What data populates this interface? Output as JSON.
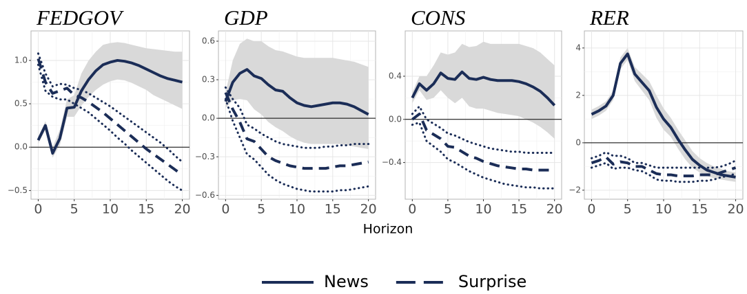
{
  "xlabel": "Horizon",
  "legend": [
    {
      "name": "News",
      "style": "solid",
      "color": "#1b2d57"
    },
    {
      "name": "Surprise",
      "style": "dashed",
      "color": "#1b2d57"
    }
  ],
  "chart_data": [
    {
      "type": "line",
      "title": "FEDGOV",
      "x": [
        0,
        1,
        2,
        3,
        4,
        5,
        6,
        7,
        8,
        9,
        10,
        11,
        12,
        13,
        14,
        15,
        16,
        17,
        18,
        19,
        20
      ],
      "xlim": [
        -1,
        21
      ],
      "xticks": [
        0,
        5,
        10,
        15,
        20
      ],
      "ylim": [
        -0.6,
        1.34
      ],
      "yticks": [
        {
          "value": -0.5,
          "label": "−0.5"
        },
        {
          "value": 0,
          "label": "0.0"
        },
        0.5,
        {
          "value": 1,
          "label": "1.0"
        }
      ],
      "hline": 0,
      "grid": true,
      "series": [
        {
          "values": [
            0.08,
            0.25,
            -0.07,
            0.1,
            0.45,
            0.46,
            0.65,
            0.78,
            0.88,
            0.95,
            0.98,
            1.0,
            0.99,
            0.97,
            0.94,
            0.9,
            0.86,
            0.82,
            0.79,
            0.77,
            0.75
          ],
          "upper": [
            0.12,
            0.3,
            0.0,
            0.2,
            0.55,
            0.6,
            0.85,
            1.0,
            1.1,
            1.18,
            1.2,
            1.21,
            1.2,
            1.18,
            1.16,
            1.14,
            1.13,
            1.12,
            1.11,
            1.1,
            1.1
          ],
          "lower": [
            0.04,
            0.2,
            -0.12,
            0.02,
            0.35,
            0.35,
            0.48,
            0.58,
            0.66,
            0.72,
            0.76,
            0.78,
            0.77,
            0.74,
            0.7,
            0.66,
            0.6,
            0.56,
            0.52,
            0.48,
            0.44
          ]
        },
        {
          "values": [
            1.02,
            0.75,
            0.62,
            0.65,
            0.68,
            0.6,
            0.57,
            0.52,
            0.46,
            0.4,
            0.33,
            0.26,
            0.19,
            0.12,
            0.05,
            -0.02,
            -0.08,
            -0.14,
            -0.2,
            -0.26,
            -0.32
          ],
          "upper": [
            1.08,
            0.85,
            0.7,
            0.73,
            0.72,
            0.68,
            0.66,
            0.62,
            0.57,
            0.52,
            0.47,
            0.41,
            0.35,
            0.29,
            0.23,
            0.17,
            0.11,
            0.05,
            -0.02,
            -0.1,
            -0.17
          ],
          "lower": [
            0.95,
            0.65,
            0.58,
            0.55,
            0.55,
            0.5,
            0.45,
            0.4,
            0.33,
            0.26,
            0.19,
            0.11,
            0.04,
            -0.04,
            -0.11,
            -0.18,
            -0.25,
            -0.32,
            -0.39,
            -0.45,
            -0.5
          ]
        }
      ]
    },
    {
      "type": "line",
      "title": "GDP",
      "x": [
        0,
        1,
        2,
        3,
        4,
        5,
        6,
        7,
        8,
        9,
        10,
        11,
        12,
        13,
        14,
        15,
        16,
        17,
        18,
        19,
        20
      ],
      "xlim": [
        -1,
        21
      ],
      "xticks": [
        0,
        5,
        10,
        15,
        20
      ],
      "ylim": [
        -0.63,
        0.68
      ],
      "yticks": [
        {
          "value": -0.6,
          "label": "−0.6"
        },
        {
          "value": -0.3,
          "label": "−0.3"
        },
        {
          "value": 0,
          "label": "0.0"
        },
        0.3,
        0.6
      ],
      "hline": 0,
      "grid": true,
      "series": [
        {
          "values": [
            0.13,
            0.28,
            0.35,
            0.38,
            0.33,
            0.31,
            0.26,
            0.22,
            0.21,
            0.16,
            0.12,
            0.1,
            0.09,
            0.1,
            0.11,
            0.12,
            0.12,
            0.11,
            0.09,
            0.06,
            0.03
          ],
          "upper": [
            0.2,
            0.45,
            0.58,
            0.62,
            0.6,
            0.6,
            0.56,
            0.53,
            0.52,
            0.5,
            0.48,
            0.47,
            0.47,
            0.47,
            0.47,
            0.47,
            0.46,
            0.45,
            0.44,
            0.42,
            0.4
          ],
          "lower": [
            0.08,
            0.14,
            0.15,
            0.14,
            0.07,
            0.03,
            -0.03,
            -0.07,
            -0.1,
            -0.14,
            -0.17,
            -0.19,
            -0.2,
            -0.2,
            -0.2,
            -0.2,
            -0.2,
            -0.21,
            -0.22,
            -0.23,
            -0.24
          ]
        },
        {
          "values": [
            0.2,
            0.07,
            -0.03,
            -0.16,
            -0.18,
            -0.24,
            -0.3,
            -0.33,
            -0.35,
            -0.37,
            -0.38,
            -0.39,
            -0.39,
            -0.39,
            -0.39,
            -0.38,
            -0.37,
            -0.37,
            -0.36,
            -0.35,
            -0.34
          ],
          "upper": [
            0.24,
            0.15,
            0.08,
            -0.05,
            -0.08,
            -0.12,
            -0.15,
            -0.18,
            -0.2,
            -0.21,
            -0.22,
            -0.23,
            -0.23,
            -0.23,
            -0.22,
            -0.22,
            -0.21,
            -0.21,
            -0.2,
            -0.2,
            -0.2
          ],
          "lower": [
            0.15,
            -0.02,
            -0.15,
            -0.28,
            -0.32,
            -0.38,
            -0.44,
            -0.48,
            -0.51,
            -0.53,
            -0.55,
            -0.56,
            -0.57,
            -0.57,
            -0.57,
            -0.57,
            -0.56,
            -0.56,
            -0.55,
            -0.54,
            -0.53
          ]
        }
      ]
    },
    {
      "type": "line",
      "title": "CONS",
      "x": [
        0,
        1,
        2,
        3,
        4,
        5,
        6,
        7,
        8,
        9,
        10,
        11,
        12,
        13,
        14,
        15,
        16,
        17,
        18,
        19,
        20
      ],
      "xlim": [
        -1,
        21
      ],
      "xticks": [
        0,
        5,
        10,
        15,
        20
      ],
      "ylim": [
        -0.74,
        0.82
      ],
      "yticks": [
        {
          "value": -0.4,
          "label": "−0.4"
        },
        {
          "value": 0,
          "label": "0.0"
        },
        0.4
      ],
      "hline": 0,
      "grid": true,
      "series": [
        {
          "values": [
            0.2,
            0.33,
            0.27,
            0.33,
            0.43,
            0.38,
            0.37,
            0.44,
            0.38,
            0.37,
            0.39,
            0.37,
            0.36,
            0.36,
            0.36,
            0.35,
            0.33,
            0.3,
            0.26,
            0.2,
            0.13
          ],
          "upper": [
            0.25,
            0.4,
            0.4,
            0.5,
            0.62,
            0.6,
            0.62,
            0.7,
            0.67,
            0.68,
            0.72,
            0.7,
            0.7,
            0.7,
            0.7,
            0.7,
            0.68,
            0.66,
            0.62,
            0.56,
            0.5
          ],
          "lower": [
            0.15,
            0.27,
            0.18,
            0.2,
            0.27,
            0.2,
            0.15,
            0.2,
            0.12,
            0.1,
            0.1,
            0.08,
            0.06,
            0.05,
            0.04,
            0.03,
            0.0,
            -0.03,
            -0.07,
            -0.12,
            -0.18
          ]
        },
        {
          "values": [
            0.0,
            0.05,
            -0.1,
            -0.14,
            -0.18,
            -0.25,
            -0.26,
            -0.3,
            -0.34,
            -0.36,
            -0.39,
            -0.41,
            -0.43,
            -0.44,
            -0.45,
            -0.46,
            -0.46,
            -0.47,
            -0.47,
            -0.47,
            -0.47
          ],
          "upper": [
            0.05,
            0.12,
            0.0,
            -0.04,
            -0.08,
            -0.13,
            -0.15,
            -0.18,
            -0.21,
            -0.23,
            -0.25,
            -0.27,
            -0.28,
            -0.29,
            -0.3,
            -0.3,
            -0.31,
            -0.31,
            -0.31,
            -0.31,
            -0.31
          ],
          "lower": [
            -0.05,
            -0.03,
            -0.2,
            -0.25,
            -0.3,
            -0.37,
            -0.4,
            -0.44,
            -0.48,
            -0.51,
            -0.54,
            -0.56,
            -0.58,
            -0.6,
            -0.61,
            -0.62,
            -0.63,
            -0.63,
            -0.64,
            -0.64,
            -0.64
          ]
        }
      ]
    },
    {
      "type": "line",
      "title": "RER",
      "x": [
        0,
        1,
        2,
        3,
        4,
        5,
        6,
        7,
        8,
        9,
        10,
        11,
        12,
        13,
        14,
        15,
        16,
        17,
        18,
        19,
        20
      ],
      "xlim": [
        -1,
        21
      ],
      "xticks": [
        0,
        5,
        10,
        15,
        20
      ],
      "ylim": [
        -2.38,
        4.72
      ],
      "yticks": [
        {
          "value": -2,
          "label": "−2"
        },
        0,
        2,
        4
      ],
      "hline": 0,
      "grid": true,
      "series": [
        {
          "values": [
            1.2,
            1.35,
            1.55,
            2.0,
            3.35,
            3.75,
            2.9,
            2.55,
            2.2,
            1.5,
            1.0,
            0.65,
            0.15,
            -0.3,
            -0.7,
            -0.95,
            -1.15,
            -1.25,
            -1.35,
            -1.4,
            -1.45
          ],
          "upper": [
            1.4,
            1.55,
            1.75,
            2.2,
            3.6,
            4.0,
            3.2,
            2.9,
            2.6,
            2.0,
            1.45,
            1.05,
            0.55,
            0.1,
            -0.35,
            -0.65,
            -0.85,
            -1.0,
            -1.1,
            -1.2,
            -1.25
          ],
          "lower": [
            1.0,
            1.15,
            1.35,
            1.8,
            3.1,
            3.5,
            2.6,
            2.2,
            1.8,
            1.05,
            0.55,
            0.25,
            -0.25,
            -0.7,
            -1.05,
            -1.25,
            -1.4,
            -1.5,
            -1.55,
            -1.6,
            -1.65
          ]
        },
        {
          "values": [
            -0.85,
            -0.75,
            -0.6,
            -0.9,
            -0.8,
            -0.85,
            -1.0,
            -1.0,
            -1.15,
            -1.3,
            -1.35,
            -1.35,
            -1.4,
            -1.4,
            -1.4,
            -1.35,
            -1.35,
            -1.35,
            -1.25,
            -1.15,
            -1.05
          ],
          "upper": [
            -0.65,
            -0.55,
            -0.4,
            -0.55,
            -0.55,
            -0.65,
            -0.85,
            -0.85,
            -0.95,
            -1.05,
            -1.05,
            -1.05,
            -1.05,
            -1.05,
            -1.05,
            -1.05,
            -1.05,
            -1.05,
            -1.0,
            -0.9,
            -0.75
          ],
          "lower": [
            -1.05,
            -0.95,
            -0.85,
            -1.1,
            -1.05,
            -1.05,
            -1.15,
            -1.2,
            -1.35,
            -1.55,
            -1.6,
            -1.6,
            -1.65,
            -1.65,
            -1.65,
            -1.6,
            -1.6,
            -1.55,
            -1.45,
            -1.4,
            -1.3
          ]
        }
      ]
    }
  ]
}
